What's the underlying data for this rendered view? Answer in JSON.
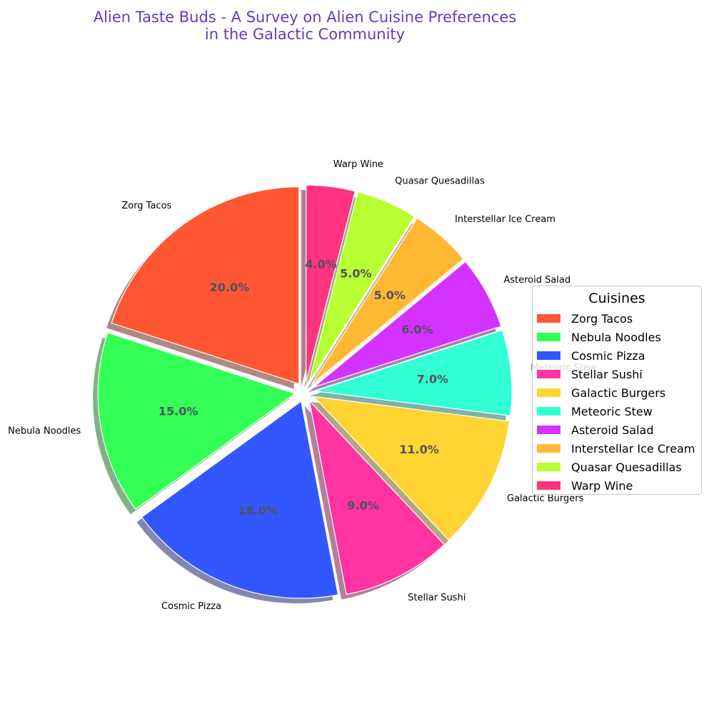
{
  "chart_data": {
    "type": "pie",
    "title": [
      "Alien Taste Buds - A Survey on Alien Cuisine Preferences",
      "in the Galactic Community"
    ],
    "categories": [
      "Zorg Tacos",
      "Nebula Noodles",
      "Cosmic Pizza",
      "Stellar Sushi",
      "Galactic Burgers",
      "Meteoric Stew",
      "Asteroid Salad",
      "Interstellar Ice Cream",
      "Quasar Quesadillas",
      "Warp Wine"
    ],
    "values": [
      20,
      15,
      18,
      9,
      11,
      7,
      6,
      5,
      5,
      4
    ],
    "percent_labels": [
      "20.0%",
      "15.0%",
      "18.0%",
      "9.0%",
      "11.0%",
      "7.0%",
      "6.0%",
      "5.0%",
      "5.0%",
      "4.0%"
    ],
    "colors": [
      "#ff5733",
      "#33ff57",
      "#3357ff",
      "#ff33a1",
      "#ffd433",
      "#33ffd4",
      "#d433ff",
      "#ffb833",
      "#b8ff33",
      "#ff3380"
    ],
    "start_angle_deg": 90,
    "direction": "counterclockwise",
    "shadow": true,
    "legend": {
      "title": "Cuisines",
      "placement": "center-right"
    }
  }
}
